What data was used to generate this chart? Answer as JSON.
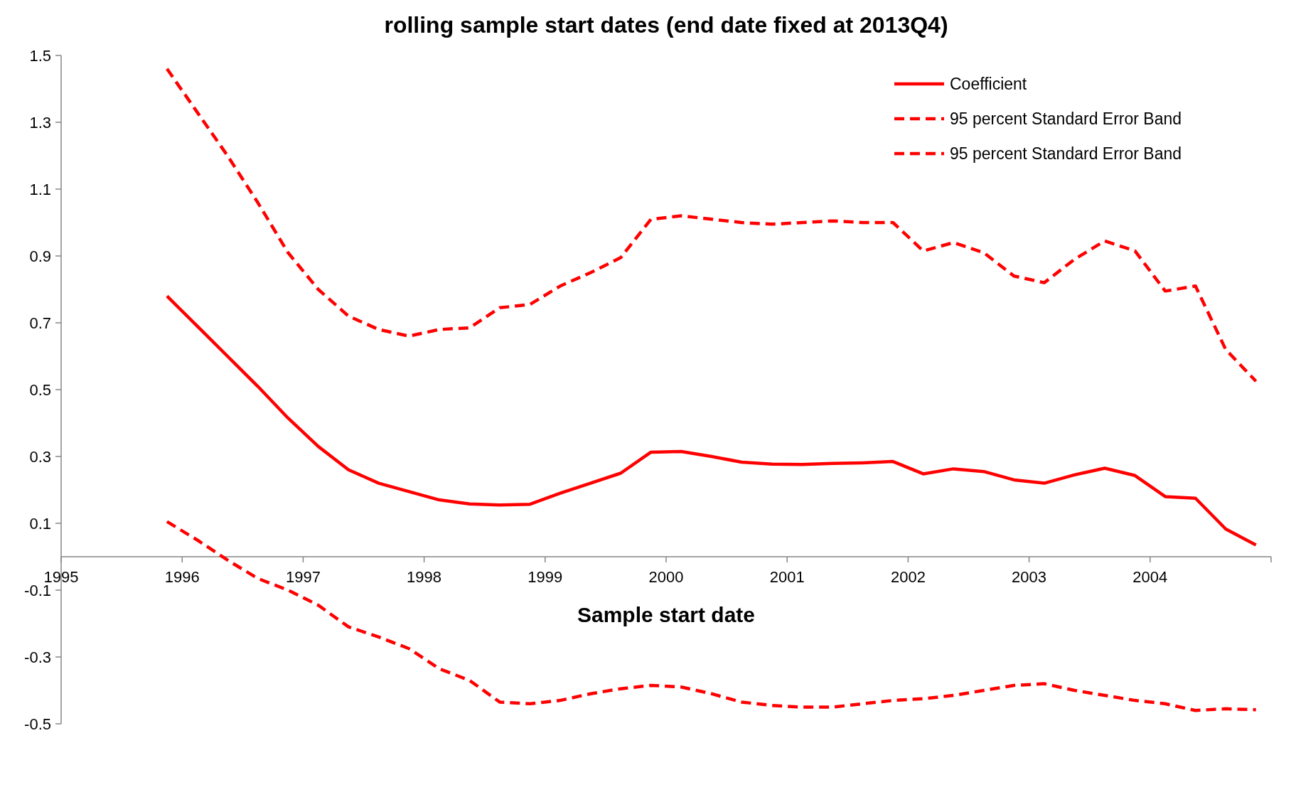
{
  "chart_data": {
    "type": "line",
    "title": "rolling sample start dates (end date fixed at 2013Q4)",
    "xlabel": "Sample start date",
    "x": [
      1995.875,
      1996.125,
      1996.375,
      1996.625,
      1996.875,
      1997.125,
      1997.375,
      1997.625,
      1997.875,
      1998.125,
      1998.375,
      1998.625,
      1998.875,
      1999.125,
      1999.375,
      1999.625,
      1999.875,
      2000.125,
      2000.375,
      2000.625,
      2000.875,
      2001.125,
      2001.375,
      2001.625,
      2001.875,
      2002.125,
      2002.375,
      2002.625,
      2002.875,
      2003.125,
      2003.375,
      2003.625,
      2003.875,
      2004.125,
      2004.375,
      2004.625,
      2004.875
    ],
    "series": [
      {
        "name": "Coefficient",
        "color": "#ff0000",
        "line_style": "solid",
        "values": [
          0.78,
          0.69,
          0.6,
          0.51,
          0.415,
          0.33,
          0.26,
          0.22,
          0.195,
          0.17,
          0.158,
          0.155,
          0.157,
          0.19,
          0.22,
          0.25,
          0.313,
          0.315,
          0.3,
          0.283,
          0.277,
          0.276,
          0.279,
          0.281,
          0.285,
          0.248,
          0.263,
          0.255,
          0.23,
          0.22,
          0.245,
          0.265,
          0.243,
          0.18,
          0.175,
          0.083,
          0.035
        ]
      },
      {
        "name": "95 percent Standard Error Band",
        "color": "#ff0000",
        "line_style": "dashed",
        "values": [
          1.46,
          1.33,
          1.2,
          1.06,
          0.91,
          0.8,
          0.72,
          0.68,
          0.66,
          0.68,
          0.685,
          0.745,
          0.755,
          0.81,
          0.85,
          0.895,
          1.01,
          1.02,
          1.01,
          1.0,
          0.995,
          1.0,
          1.005,
          1.0,
          1.0,
          0.915,
          0.94,
          0.91,
          0.84,
          0.82,
          0.89,
          0.945,
          0.915,
          0.795,
          0.81,
          0.62,
          0.525
        ]
      },
      {
        "name": "95 percent Standard Error Band",
        "color": "#ff0000",
        "line_style": "dashed",
        "values": [
          0.105,
          0.05,
          -0.01,
          -0.065,
          -0.1,
          -0.145,
          -0.21,
          -0.24,
          -0.275,
          -0.335,
          -0.37,
          -0.435,
          -0.44,
          -0.43,
          -0.41,
          -0.395,
          -0.385,
          -0.39,
          -0.41,
          -0.435,
          -0.445,
          -0.45,
          -0.45,
          -0.44,
          -0.43,
          -0.425,
          -0.415,
          -0.4,
          -0.385,
          -0.38,
          -0.4,
          -0.415,
          -0.43,
          -0.44,
          -0.46,
          -0.455,
          -0.458
        ]
      }
    ],
    "xlim": [
      1995,
      2005
    ],
    "xticks": [
      1995,
      1996,
      1997,
      1998,
      1999,
      2000,
      2001,
      2002,
      2003,
      2004
    ],
    "ylim": [
      -0.5,
      1.5
    ],
    "yticks": [
      -0.5,
      -0.3,
      -0.1,
      0.1,
      0.3,
      0.5,
      0.7,
      0.9,
      1.1,
      1.3,
      1.5
    ],
    "grid": false,
    "legend": "top right",
    "marker": "none"
  }
}
